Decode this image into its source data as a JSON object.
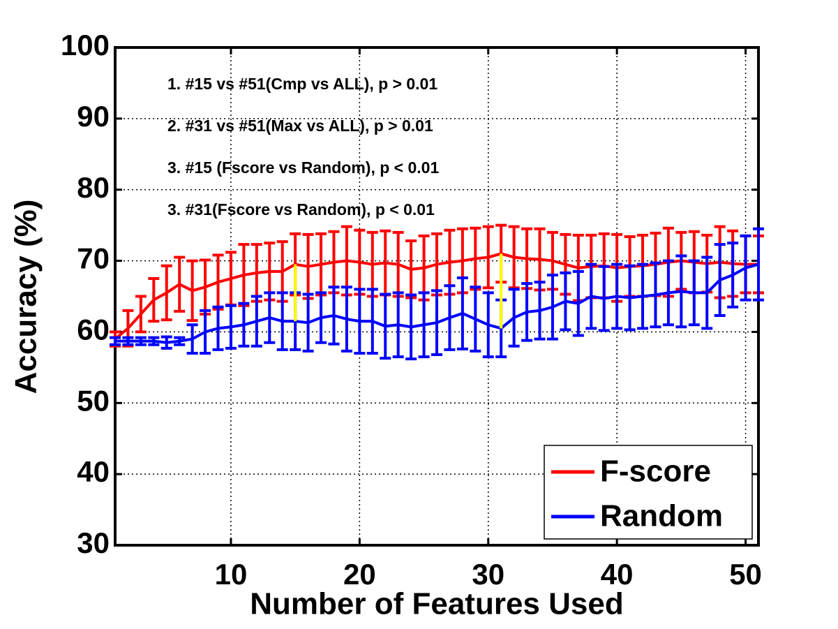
{
  "chart_data": {
    "type": "errorbar-line",
    "xlabel": "Number of Features Used",
    "ylabel": "Accuracy (%)",
    "annotations": [
      "1. #15 vs #51(Cmp vs ALL), p > 0.01",
      "2. #31 vs #51(Max vs ALL), p > 0.01",
      "3. #15 (Fscore vs Random), p < 0.01",
      "3. #31(Fscore vs Random), p < 0.01"
    ],
    "x": [
      1,
      2,
      3,
      4,
      5,
      6,
      7,
      8,
      9,
      10,
      11,
      12,
      13,
      14,
      15,
      16,
      17,
      18,
      19,
      20,
      21,
      22,
      23,
      24,
      25,
      26,
      27,
      28,
      29,
      30,
      31,
      32,
      33,
      34,
      35,
      36,
      37,
      38,
      39,
      40,
      41,
      42,
      43,
      44,
      45,
      46,
      47,
      48,
      49,
      50,
      51
    ],
    "series": [
      {
        "name": "F-score",
        "color": "#ff0000",
        "values": [
          59,
          60.5,
          62.5,
          64.5,
          65.5,
          66.7,
          65.8,
          66.3,
          67,
          67.5,
          68,
          68.3,
          68.5,
          68.5,
          69.5,
          69.2,
          69.5,
          69.8,
          70,
          69.8,
          69.5,
          69.7,
          69.5,
          68.8,
          69,
          69.5,
          69.8,
          70,
          70.3,
          70.5,
          71,
          70.5,
          70.3,
          70.2,
          70,
          69.5,
          69,
          69.2,
          69.3,
          69,
          69.2,
          69.3,
          69.5,
          69.8,
          70,
          69.8,
          69.6,
          69.8,
          69.6,
          69.5,
          69.5
        ],
        "errors": [
          1,
          2.5,
          2.5,
          3,
          3.8,
          3.8,
          4.2,
          3.8,
          3.8,
          3.7,
          4.3,
          4,
          4,
          4.2,
          4.3,
          4.5,
          4.3,
          4.3,
          4.8,
          4.5,
          4.5,
          4.5,
          4.5,
          4,
          4.5,
          4.3,
          4.5,
          4.5,
          4.3,
          4.3,
          4,
          4.3,
          4.2,
          4.3,
          4,
          4.2,
          4.6,
          4.4,
          4.5,
          4.7,
          4.2,
          4.3,
          4.4,
          4.8,
          4,
          4.3,
          4,
          5,
          4.6,
          4,
          4
        ]
      },
      {
        "name": "Random",
        "color": "#0000ff",
        "values": [
          58.7,
          58.7,
          58.7,
          58.7,
          58.5,
          58.7,
          59,
          60,
          60.5,
          60.7,
          61,
          61.5,
          62,
          61.5,
          61.5,
          61.3,
          62,
          62.3,
          61.8,
          61.5,
          61.5,
          60.8,
          61,
          60.7,
          61,
          61.3,
          62,
          62.6,
          61.8,
          61,
          60.5,
          62,
          62.8,
          63,
          63.5,
          64.3,
          64,
          65,
          64.7,
          65,
          64.8,
          65,
          65.2,
          65.5,
          65.7,
          65.5,
          65.5,
          67.3,
          68,
          69,
          69.5
        ],
        "errors": [
          0.5,
          0.5,
          0.5,
          0.5,
          0.8,
          0.5,
          2,
          3,
          3,
          3,
          3,
          3.5,
          3.5,
          4,
          4,
          4,
          3.5,
          4,
          4.5,
          4.5,
          4.5,
          4.5,
          4.5,
          4.5,
          4.5,
          4.5,
          4.5,
          5,
          4.5,
          4.5,
          4,
          4,
          4,
          4,
          4.5,
          4,
          4.5,
          4.5,
          4.5,
          4.5,
          4.5,
          4.5,
          4.5,
          4.5,
          5,
          4.5,
          5,
          5,
          4.5,
          4.5,
          5
        ]
      }
    ],
    "highlight_x": [
      15,
      31
    ],
    "highlight_color": "#ffff00",
    "xlim": [
      1,
      51
    ],
    "ylim": [
      30,
      100
    ],
    "xticks": [
      10,
      20,
      30,
      40,
      50
    ],
    "yticks": [
      30,
      40,
      50,
      60,
      70,
      80,
      90,
      100
    ],
    "grid": true,
    "legend": "lower right"
  }
}
